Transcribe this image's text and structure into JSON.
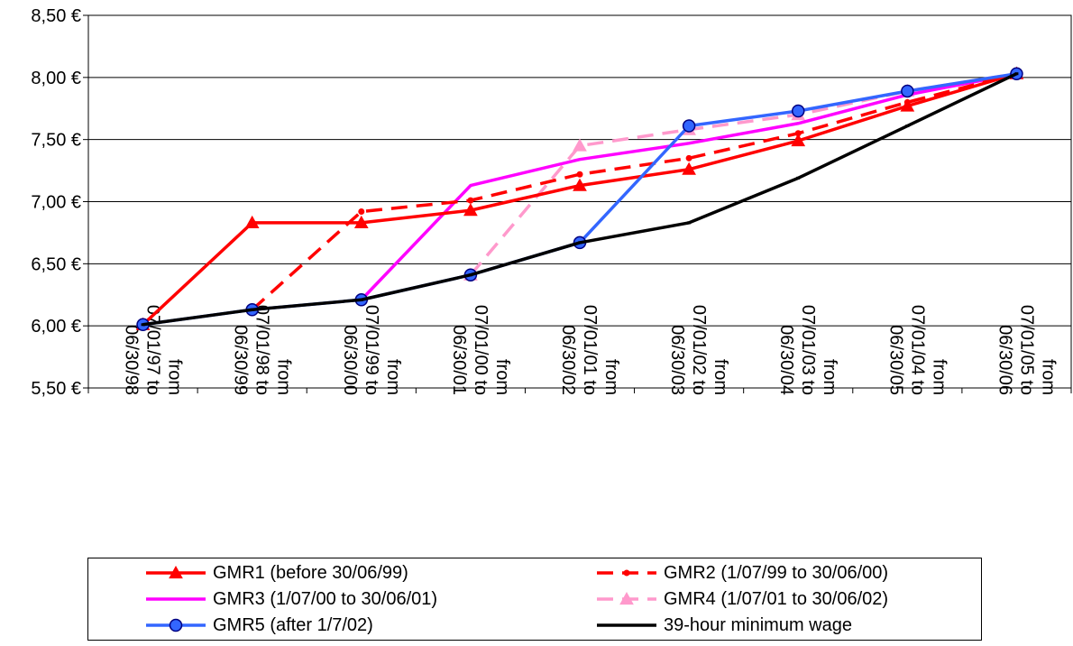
{
  "chart_data": {
    "type": "line",
    "title": "",
    "xlabel": "",
    "ylabel": "",
    "ylim": [
      5.5,
      8.5
    ],
    "yticks": [
      "5,50 €",
      "6,00 €",
      "6,50 €",
      "7,00 €",
      "7,50 €",
      "8,00 €",
      "8,50 €"
    ],
    "grid": true,
    "legend_position": "bottom",
    "categories": [
      "from 07/01/97 to 06/30/98",
      "from 07/01/98 to 06/30/99",
      "from 07/01/99 to 06/30/00",
      "from 07/01/00 to 06/30/01",
      "from 07/01/01 to 06/30/02",
      "from 07/01/02 to 06/30/03",
      "from 07/01/03 to 06/30/04",
      "from 07/01/04 to 06/30/05",
      "from 07/01/05 to 06/30/06"
    ],
    "series": [
      {
        "name": "GMR1 (before 30/06/99)",
        "color": "#ff0000",
        "marker": "triangle",
        "dash": "solid",
        "values": [
          6.01,
          6.83,
          6.83,
          6.93,
          7.13,
          7.26,
          7.49,
          7.77,
          8.03
        ]
      },
      {
        "name": "GMR2 (1/07/99 to 30/06/00)",
        "color": "#ff0000",
        "marker": "dot",
        "dash": "dash",
        "values": [
          null,
          6.13,
          6.92,
          7.01,
          7.22,
          7.35,
          7.55,
          7.8,
          8.03
        ]
      },
      {
        "name": "GMR3 (1/07/00 to 30/06/01)",
        "color": "#ff00ff",
        "marker": "none",
        "dash": "solid",
        "values": [
          null,
          null,
          6.21,
          7.13,
          7.34,
          7.47,
          7.63,
          7.86,
          8.03
        ]
      },
      {
        "name": "GMR4 (1/07/01 to 30/06/02)",
        "color": "#ff99cc",
        "marker": "triangle",
        "dash": "dash",
        "values": [
          null,
          null,
          null,
          6.41,
          7.45,
          7.58,
          7.7,
          7.89,
          8.03
        ]
      },
      {
        "name": "GMR5 (after 1/7/02)",
        "color": "#3366ff",
        "marker": "circle",
        "dash": "solid",
        "values": [
          6.01,
          6.13,
          6.21,
          6.41,
          6.67,
          7.61,
          7.73,
          7.89,
          8.03
        ]
      },
      {
        "name": "39-hour minimum wage",
        "color": "#000000",
        "marker": "tick",
        "dash": "solid",
        "values": [
          6.01,
          6.13,
          6.21,
          6.41,
          6.67,
          6.83,
          7.19,
          7.61,
          8.03
        ]
      }
    ]
  }
}
